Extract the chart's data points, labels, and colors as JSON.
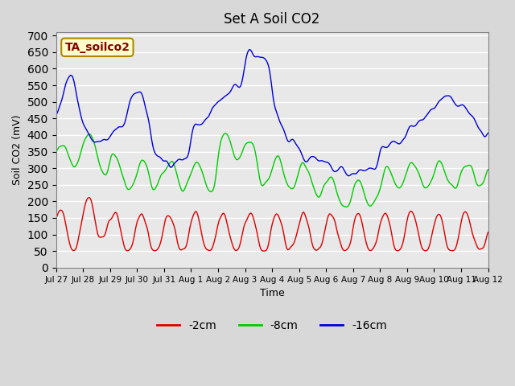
{
  "title": "Set A Soil CO2",
  "xlabel": "Time",
  "ylabel": "Soil CO2 (mV)",
  "ylim": [
    0,
    710
  ],
  "yticks": [
    0,
    50,
    100,
    150,
    200,
    250,
    300,
    350,
    400,
    450,
    500,
    550,
    600,
    650,
    700
  ],
  "background_color": "#e8e8e8",
  "plot_bg_color": "#e0e0e0",
  "grid_color": "#ffffff",
  "line_colors": {
    "red": "#dd0000",
    "green": "#00cc00",
    "blue": "#0000dd"
  },
  "legend_label": "TA_soilco2",
  "legend_bg": "#ffffcc",
  "legend_text_color": "#880000",
  "series_labels": [
    "-2cm",
    "-8cm",
    "-16cm"
  ],
  "xtick_labels": [
    "Jul 27",
    "Jul 28",
    "Jul 29",
    "Jul 30",
    "Jul 31",
    "Aug 1",
    "Aug 2",
    "Aug 3",
    "Aug 4",
    "Aug 5",
    "Aug 6",
    "Aug 7",
    "Aug 8",
    "Aug 9",
    "Aug 10",
    "Aug 11",
    "Aug 12"
  ]
}
